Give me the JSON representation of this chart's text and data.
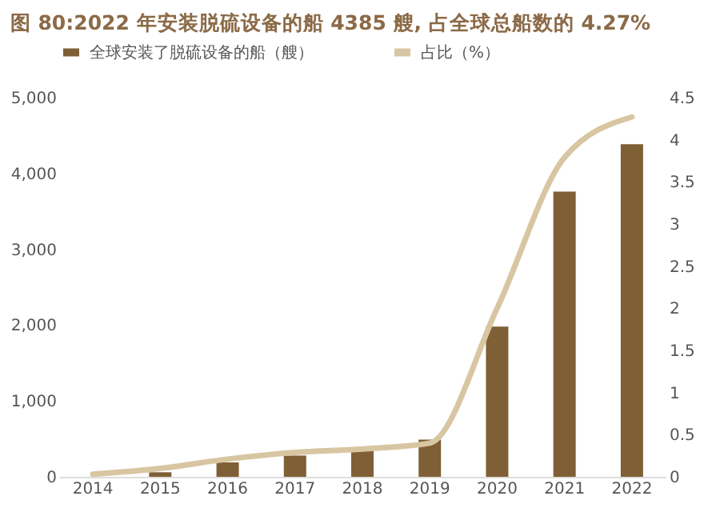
{
  "chart_data": {
    "type": "bar",
    "title": "图 80:2022 年安装脱硫设备的船 4385 艘, 占全球总船数的 4.27%",
    "categories": [
      "2014",
      "2015",
      "2016",
      "2017",
      "2018",
      "2019",
      "2020",
      "2021",
      "2022"
    ],
    "series": [
      {
        "name": "全球安装了脱硫设备的船（艘）",
        "color": "#7f5f36",
        "values": [
          null,
          60,
          190,
          280,
          350,
          490,
          1980,
          3760,
          4385
        ]
      },
      {
        "name": "占比（%）",
        "color": "#d8c6a2",
        "type": "line",
        "axis": "y2",
        "values": [
          0.03,
          0.1,
          0.21,
          0.29,
          0.33,
          0.4,
          2.0,
          3.79,
          4.27
        ]
      }
    ],
    "ylim": [
      0,
      5000
    ],
    "yticks": [
      {
        "value": 0,
        "label": "0"
      },
      {
        "value": 1000,
        "label": "1,000"
      },
      {
        "value": 2000,
        "label": "2,000"
      },
      {
        "value": 3000,
        "label": "3,000"
      },
      {
        "value": 4000,
        "label": "4,000"
      },
      {
        "value": 5000,
        "label": "5,000"
      }
    ],
    "y2lim": [
      0,
      4.5
    ],
    "y2ticks": [
      0,
      0.5,
      1,
      1.5,
      2,
      2.5,
      3,
      3.5,
      4,
      4.5
    ],
    "legend": "top",
    "grid": false
  }
}
